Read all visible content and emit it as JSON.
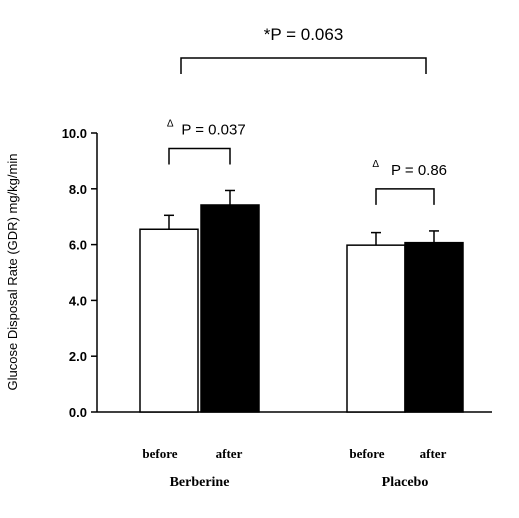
{
  "chart_data": {
    "type": "bar",
    "ylabel": "Glucose Disposal Rate (GDR) mg/kg/min",
    "ylim": [
      0,
      10
    ],
    "y_ticks": [
      "0.0",
      "2.0",
      "4.0",
      "6.0",
      "8.0",
      "10.0"
    ],
    "groups": [
      {
        "name": "Berberine",
        "bars": [
          {
            "label": "before",
            "value": 6.55,
            "error": 0.5,
            "fill": "#ffffff"
          },
          {
            "label": "after",
            "value": 7.42,
            "error": 0.52,
            "fill": "#000000"
          }
        ],
        "annotation": {
          "symbol": "Δ",
          "text": "P = 0.037"
        }
      },
      {
        "name": "Placebo",
        "bars": [
          {
            "label": "before",
            "value": 5.98,
            "error": 0.45,
            "fill": "#ffffff"
          },
          {
            "label": "after",
            "value": 6.07,
            "error": 0.42,
            "fill": "#000000"
          }
        ],
        "annotation": {
          "symbol": "Δ",
          "text": "P = 0.86"
        }
      }
    ],
    "comparison": {
      "symbol": "*",
      "text": "P = 0.063"
    },
    "grid": false,
    "legend": "none"
  }
}
